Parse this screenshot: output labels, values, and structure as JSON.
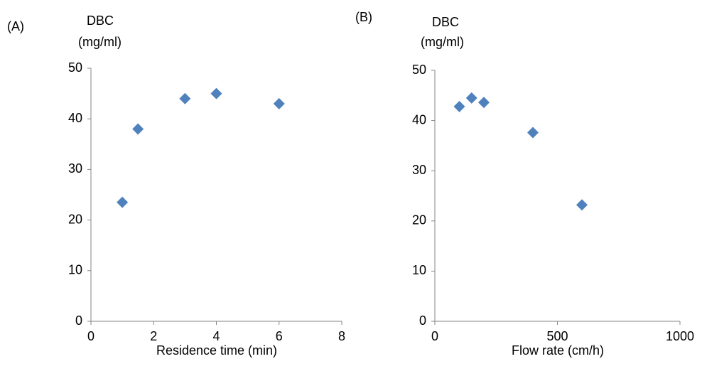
{
  "chart_data": [
    {
      "type": "scatter",
      "panel_label": "(A)",
      "ylabel_lines": [
        "DBC",
        "(mg/ml)"
      ],
      "xlabel": "Residence time (min)",
      "x": [
        1,
        1.5,
        3,
        4,
        6
      ],
      "values": [
        23.5,
        38,
        44,
        45,
        43
      ],
      "color": "#4f81bd",
      "xlim": [
        0,
        8
      ],
      "xticks": [
        0,
        2,
        4,
        6,
        8
      ],
      "ylim": [
        0,
        50
      ],
      "yticks": [
        0,
        10,
        20,
        30,
        40,
        50
      ]
    },
    {
      "type": "scatter",
      "panel_label": "(B)",
      "ylabel_lines": [
        "DBC",
        "(mg/ml)"
      ],
      "xlabel": "Flow rate (cm/h)",
      "x": [
        100,
        150,
        200,
        400,
        600
      ],
      "values": [
        42.8,
        44.5,
        43.6,
        37.6,
        23.2
      ],
      "color": "#4f81bd",
      "xlim": [
        0,
        1000
      ],
      "xticks": [
        0,
        500,
        1000
      ],
      "ylim": [
        0,
        50
      ],
      "yticks": [
        0,
        10,
        20,
        30,
        40,
        50
      ]
    }
  ]
}
